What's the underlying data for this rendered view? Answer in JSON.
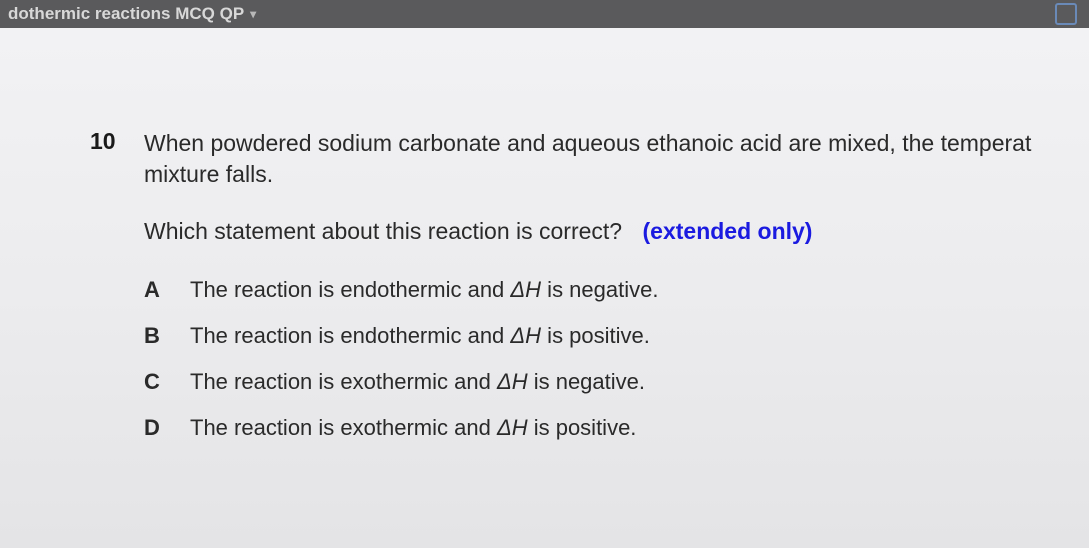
{
  "topbar": {
    "title": "dothermic reactions MCQ QP"
  },
  "question": {
    "number": "10",
    "stem_line1": "When powdered sodium carbonate and aqueous ethanoic acid are mixed, the temperat",
    "stem_line2": "mixture falls.",
    "prompt": "Which statement about this reaction is correct?",
    "extended": "(extended only)"
  },
  "options": {
    "a": {
      "letter": "A",
      "pre": "The reaction is endothermic and ",
      "delta": "ΔH",
      "post": " is negative."
    },
    "b": {
      "letter": "B",
      "pre": "The reaction is endothermic and ",
      "delta": "ΔH",
      "post": " is positive."
    },
    "c": {
      "letter": "C",
      "pre": "The reaction is exothermic and ",
      "delta": "ΔH",
      "post": " is negative."
    },
    "d": {
      "letter": "D",
      "pre": "The reaction is exothermic and ",
      "delta": "ΔH",
      "post": " is positive."
    }
  }
}
